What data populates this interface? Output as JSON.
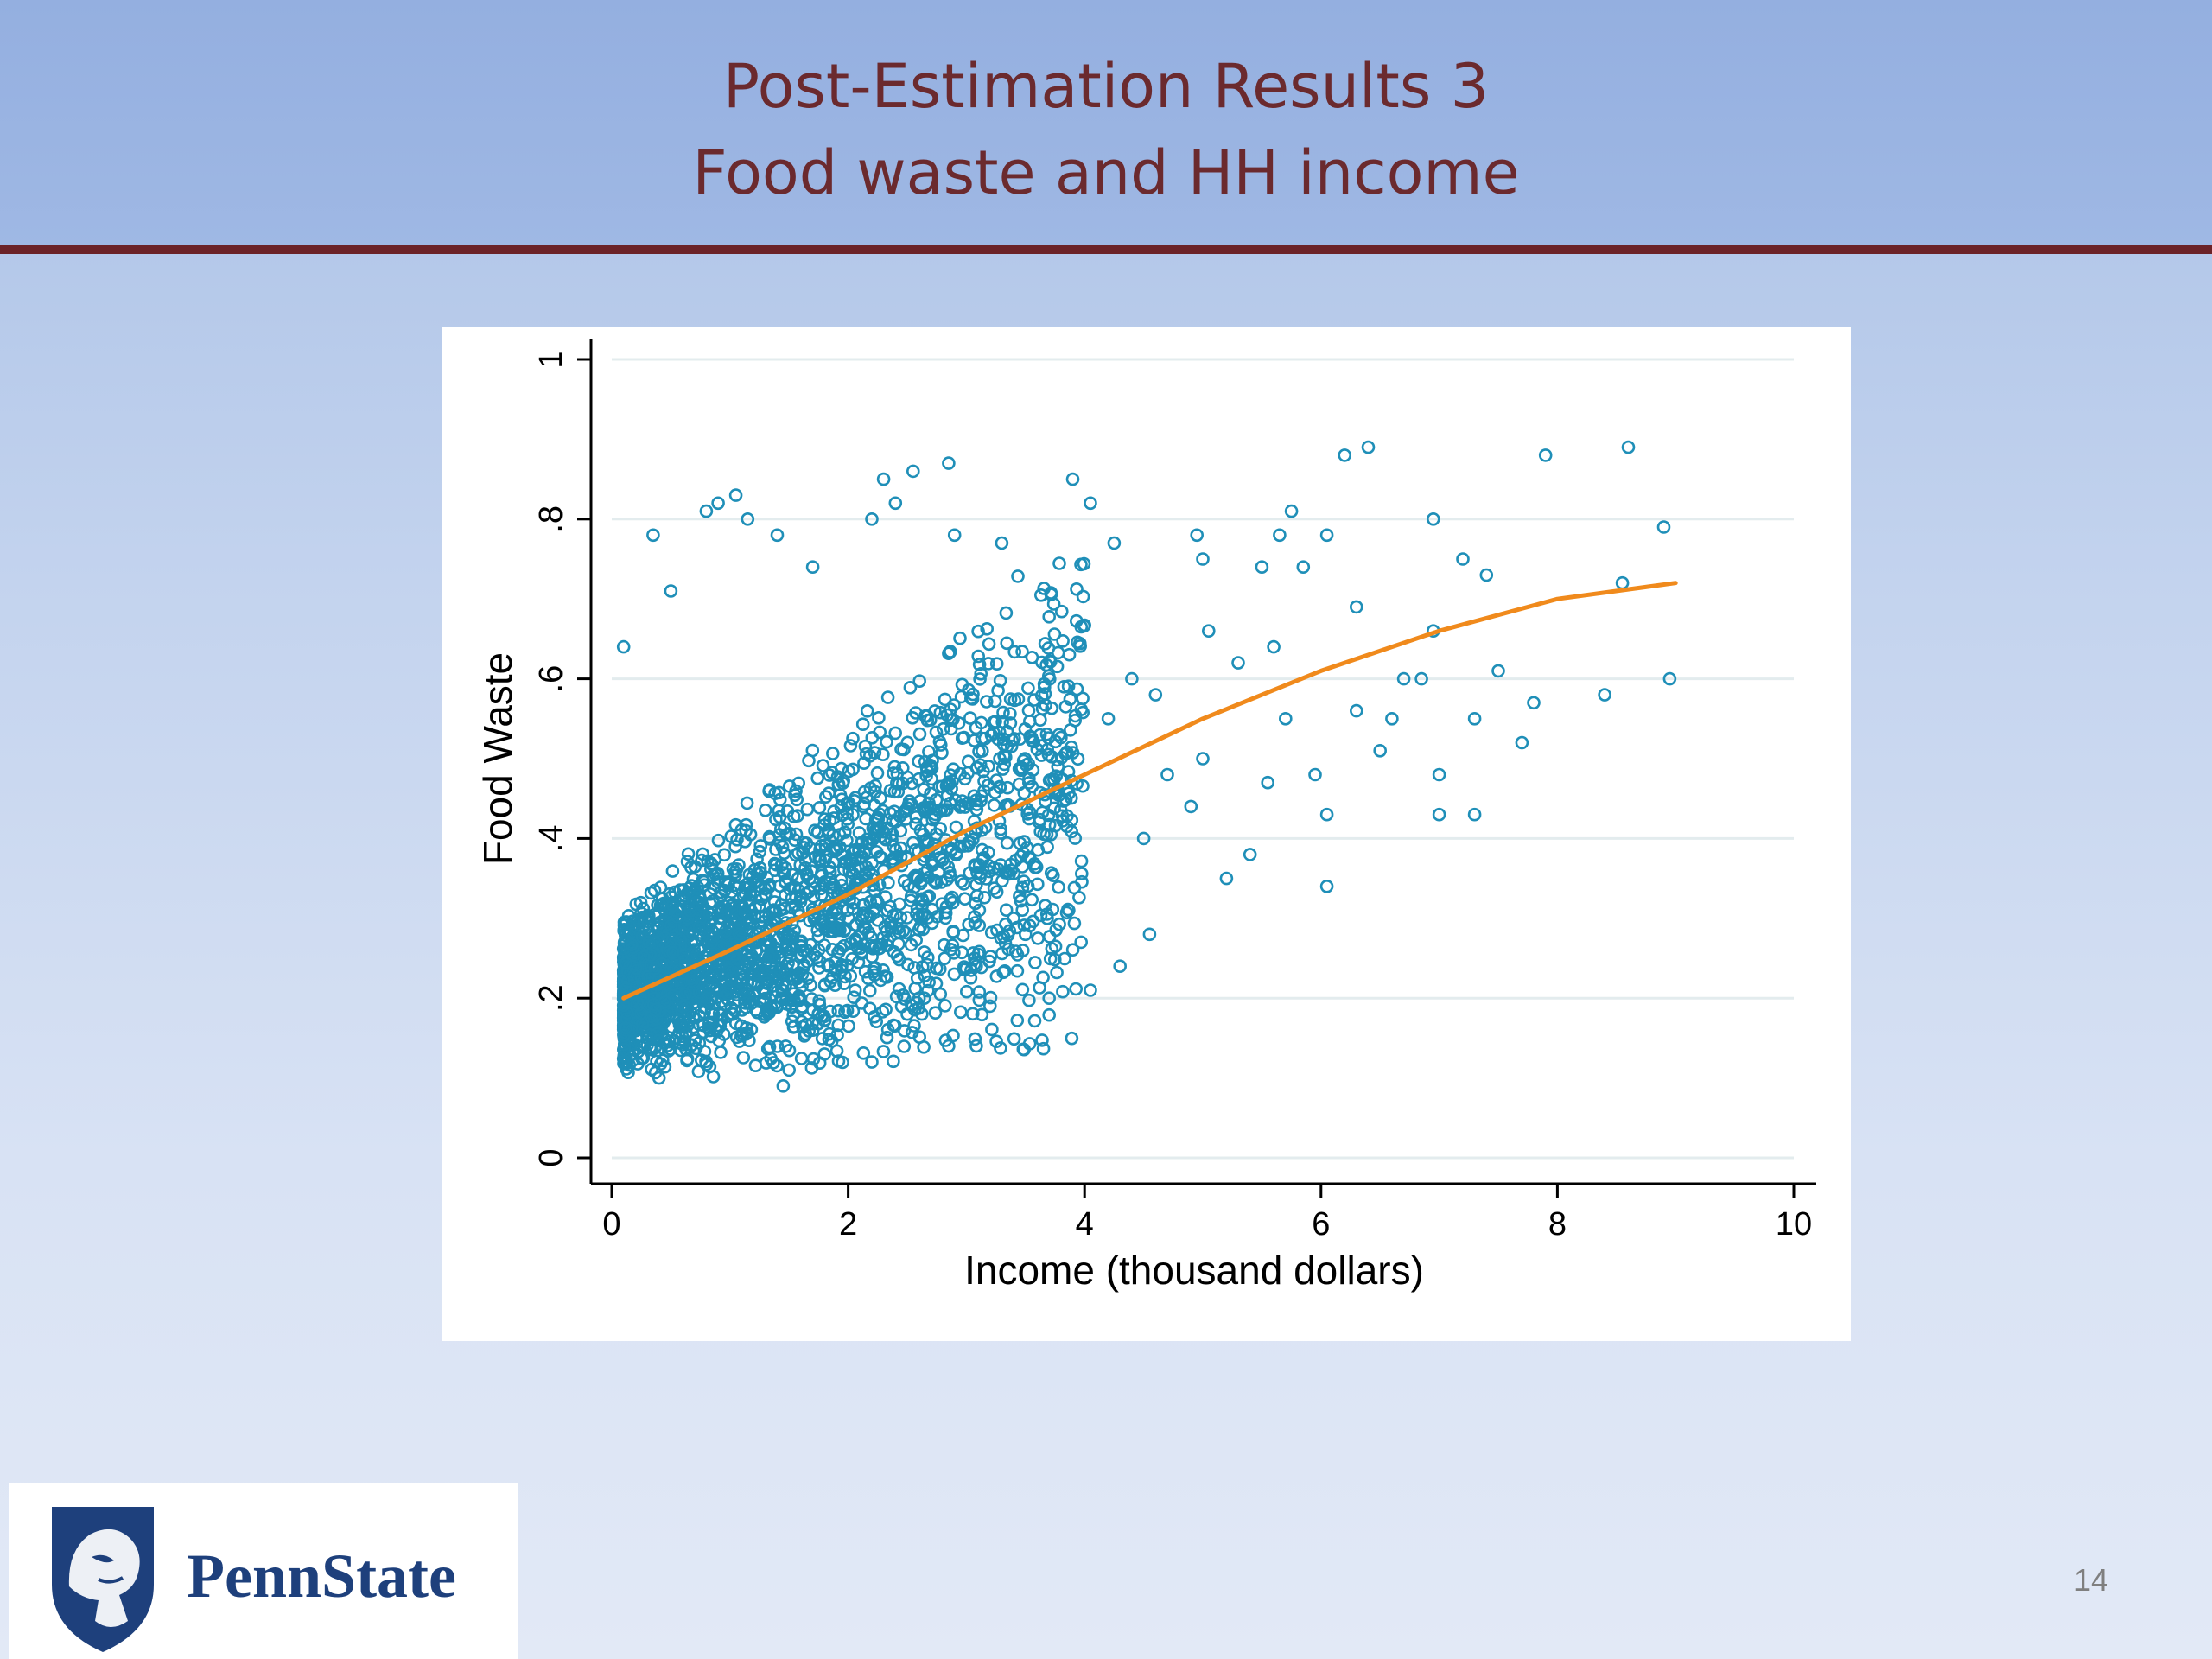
{
  "slide": {
    "title_line1": "Post-Estimation Results 3",
    "title_line2": "Food waste and HH income",
    "slide_number": "14"
  },
  "logo": {
    "wordmark": "PennState"
  },
  "colors": {
    "title": "#6b2a2e",
    "header_rule": "#6b2228",
    "point": "#1f8fb8",
    "fit_line": "#f08a1c",
    "logo_navy": "#1e407c"
  },
  "chart_data": {
    "type": "scatter",
    "xlabel": "Income (thousand dollars)",
    "ylabel": "Food Waste",
    "xlim": [
      0,
      10
    ],
    "ylim": [
      0,
      1
    ],
    "xticks": [
      0,
      2,
      4,
      6,
      8,
      10
    ],
    "yticks": [
      0,
      0.2,
      0.4,
      0.6,
      0.8,
      1
    ],
    "ytick_labels": [
      "0",
      ".2",
      ".4",
      ".6",
      ".8",
      "1"
    ],
    "grid": true,
    "marker": "hollow-circle",
    "series": [
      {
        "kind": "points",
        "points": [
          [
            0.1,
            0.64
          ],
          [
            0.35,
            0.78
          ],
          [
            0.5,
            0.71
          ],
          [
            0.8,
            0.81
          ],
          [
            0.9,
            0.82
          ],
          [
            1.05,
            0.83
          ],
          [
            1.15,
            0.8
          ],
          [
            1.4,
            0.78
          ],
          [
            1.7,
            0.74
          ],
          [
            2.2,
            0.8
          ],
          [
            2.3,
            0.85
          ],
          [
            2.4,
            0.82
          ],
          [
            2.55,
            0.86
          ],
          [
            2.85,
            0.87
          ],
          [
            2.9,
            0.78
          ],
          [
            3.3,
            0.77
          ],
          [
            3.9,
            0.85
          ],
          [
            4.05,
            0.82
          ],
          [
            4.25,
            0.77
          ],
          [
            4.95,
            0.78
          ],
          [
            5.0,
            0.75
          ],
          [
            5.5,
            0.74
          ],
          [
            5.65,
            0.78
          ],
          [
            5.75,
            0.81
          ],
          [
            5.85,
            0.74
          ],
          [
            6.05,
            0.78
          ],
          [
            6.2,
            0.88
          ],
          [
            6.4,
            0.89
          ],
          [
            6.95,
            0.8
          ],
          [
            7.2,
            0.75
          ],
          [
            7.4,
            0.73
          ],
          [
            7.9,
            0.88
          ],
          [
            8.55,
            0.72
          ],
          [
            8.6,
            0.89
          ],
          [
            8.9,
            0.79
          ],
          [
            8.95,
            0.6
          ],
          [
            8.4,
            0.58
          ],
          [
            7.8,
            0.57
          ],
          [
            7.7,
            0.52
          ],
          [
            7.5,
            0.61
          ],
          [
            7.3,
            0.55
          ],
          [
            7.0,
            0.48
          ],
          [
            7.0,
            0.43
          ],
          [
            7.3,
            0.43
          ],
          [
            6.85,
            0.6
          ],
          [
            6.95,
            0.66
          ],
          [
            6.6,
            0.55
          ],
          [
            6.5,
            0.51
          ],
          [
            6.3,
            0.56
          ],
          [
            6.05,
            0.43
          ],
          [
            6.05,
            0.34
          ],
          [
            5.95,
            0.48
          ],
          [
            5.7,
            0.55
          ],
          [
            5.55,
            0.47
          ],
          [
            5.4,
            0.38
          ],
          [
            5.2,
            0.35
          ],
          [
            5.0,
            0.5
          ],
          [
            5.05,
            0.66
          ],
          [
            4.9,
            0.44
          ],
          [
            4.7,
            0.48
          ],
          [
            4.55,
            0.28
          ],
          [
            4.5,
            0.4
          ],
          [
            4.3,
            0.24
          ],
          [
            4.05,
            0.21
          ],
          [
            3.7,
            0.2
          ],
          [
            3.5,
            0.28
          ],
          [
            3.4,
            0.3
          ],
          [
            3.2,
            0.19
          ],
          [
            2.85,
            0.14
          ],
          [
            2.6,
            0.2
          ],
          [
            2.5,
            0.18
          ],
          [
            2.2,
            0.12
          ],
          [
            1.8,
            0.13
          ],
          [
            1.5,
            0.11
          ],
          [
            1.45,
            0.09
          ],
          [
            0.4,
            0.1
          ],
          [
            0.3,
            0.15
          ],
          [
            4.6,
            0.58
          ],
          [
            4.4,
            0.6
          ],
          [
            4.2,
            0.55
          ],
          [
            5.6,
            0.64
          ],
          [
            6.3,
            0.69
          ],
          [
            6.7,
            0.6
          ],
          [
            5.3,
            0.62
          ]
        ],
        "cloud": {
          "n": 2600,
          "x_distribution": "dense near 0.1–2, thinning to 4",
          "y_range": [
            0.09,
            0.78
          ],
          "note": "dense mass of points; exact values not readable"
        }
      },
      {
        "kind": "fitted-line",
        "points": [
          [
            0.1,
            0.2
          ],
          [
            1,
            0.26
          ],
          [
            2,
            0.33
          ],
          [
            3,
            0.41
          ],
          [
            4,
            0.48
          ],
          [
            5,
            0.55
          ],
          [
            6,
            0.61
          ],
          [
            7,
            0.66
          ],
          [
            8,
            0.7
          ],
          [
            9,
            0.72
          ]
        ]
      }
    ]
  }
}
